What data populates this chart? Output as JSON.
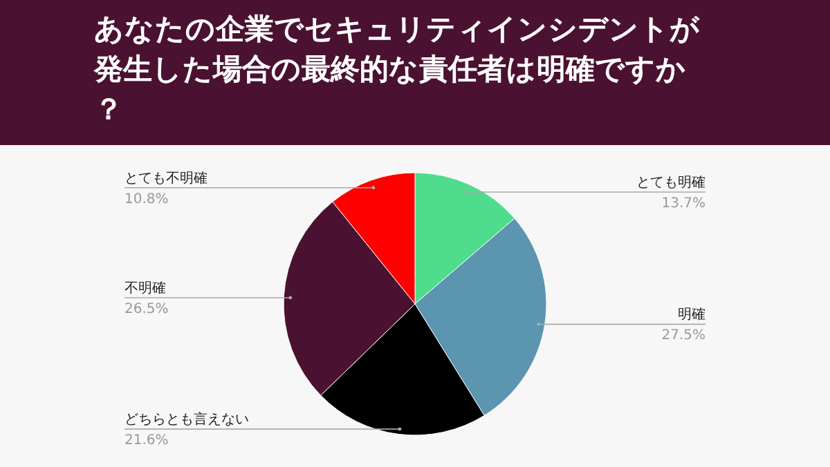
{
  "chart_data": {
    "type": "pie",
    "title": "あなたの企業でセキュリティインシデントが発生した場合の最終的な責任者は明確ですか？",
    "categories": [
      "とても明確",
      "明確",
      "どちらとも言えない",
      "不明確",
      "とても不明確"
    ],
    "values": [
      13.7,
      27.5,
      21.6,
      26.5,
      10.8
    ],
    "value_labels": [
      "13.7%",
      "27.5%",
      "21.6%",
      "26.5%",
      "10.8%"
    ],
    "colors": [
      "#4fdc8c",
      "#5b95b0",
      "#000000",
      "#4a1230",
      "#ff0000"
    ]
  }
}
